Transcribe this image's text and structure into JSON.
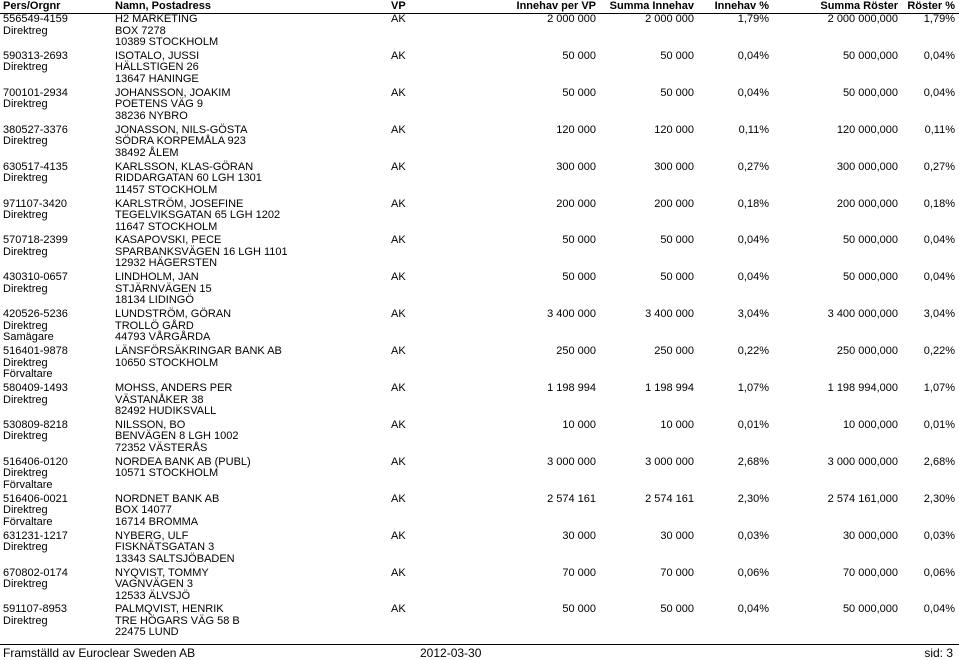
{
  "header": {
    "col_id": "Pers/Orgnr",
    "col_name": "Namn, Postadress",
    "col_vp": "VP",
    "col_innvp": "Innehav per VP",
    "col_suminn": "Summa Innehav",
    "col_innpct": "Innehav %",
    "col_sumrost": "Summa Röster",
    "col_rostpct": "Röster %"
  },
  "rows": [
    {
      "id": "556549-4159",
      "roles": [
        "Direktreg"
      ],
      "name": [
        "H2 MARKETING",
        "BOX 7278",
        "10389 STOCKHOLM"
      ],
      "vp": "AK",
      "innvp": "2 000 000",
      "suminn": "2 000 000",
      "innpct": "1,79%",
      "sumrost": "2 000 000,000",
      "rostpct": "1,79%"
    },
    {
      "id": "590313-2693",
      "roles": [
        "Direktreg"
      ],
      "name": [
        "ISOTALO, JUSSI",
        "HÄLLSTIGEN 26",
        "13647 HANINGE"
      ],
      "vp": "AK",
      "innvp": "50 000",
      "suminn": "50 000",
      "innpct": "0,04%",
      "sumrost": "50 000,000",
      "rostpct": "0,04%"
    },
    {
      "id": "700101-2934",
      "roles": [
        "Direktreg"
      ],
      "name": [
        "JOHANSSON, JOAKIM",
        "POETENS VÄG 9",
        "38236 NYBRO"
      ],
      "vp": "AK",
      "innvp": "50 000",
      "suminn": "50 000",
      "innpct": "0,04%",
      "sumrost": "50 000,000",
      "rostpct": "0,04%"
    },
    {
      "id": "380527-3376",
      "roles": [
        "Direktreg"
      ],
      "name": [
        "JONASSON, NILS-GÖSTA",
        "SÖDRA KORPEMÅLA 923",
        "38492 ÅLEM"
      ],
      "vp": "AK",
      "innvp": "120 000",
      "suminn": "120 000",
      "innpct": "0,11%",
      "sumrost": "120 000,000",
      "rostpct": "0,11%"
    },
    {
      "id": "630517-4135",
      "roles": [
        "Direktreg"
      ],
      "name": [
        "KARLSSON, KLAS-GÖRAN",
        "RIDDARGATAN 60 LGH 1301",
        "11457 STOCKHOLM"
      ],
      "vp": "AK",
      "innvp": "300 000",
      "suminn": "300 000",
      "innpct": "0,27%",
      "sumrost": "300 000,000",
      "rostpct": "0,27%"
    },
    {
      "id": "971107-3420",
      "roles": [
        "Direktreg"
      ],
      "name": [
        "KARLSTRÖM, JOSEFINE",
        "TEGELVIKSGATAN 65 LGH 1202",
        "11647 STOCKHOLM"
      ],
      "vp": "AK",
      "innvp": "200 000",
      "suminn": "200 000",
      "innpct": "0,18%",
      "sumrost": "200 000,000",
      "rostpct": "0,18%"
    },
    {
      "id": "570718-2399",
      "roles": [
        "Direktreg"
      ],
      "name": [
        "KASAPOVSKI, PECE",
        "SPARBANKSVÄGEN 16 LGH 1101",
        "12932 HÄGERSTEN"
      ],
      "vp": "AK",
      "innvp": "50 000",
      "suminn": "50 000",
      "innpct": "0,04%",
      "sumrost": "50 000,000",
      "rostpct": "0,04%"
    },
    {
      "id": "430310-0657",
      "roles": [
        "Direktreg"
      ],
      "name": [
        "LINDHOLM, JAN",
        "STJÄRNVÄGEN 15",
        "18134 LIDINGÖ"
      ],
      "vp": "AK",
      "innvp": "50 000",
      "suminn": "50 000",
      "innpct": "0,04%",
      "sumrost": "50 000,000",
      "rostpct": "0,04%"
    },
    {
      "id": "420526-5236",
      "roles": [
        "Direktreg",
        "Samägare"
      ],
      "name": [
        "LUNDSTRÖM, GÖRAN",
        "TROLLÖ GÅRD",
        "44793 VÅRGÅRDA"
      ],
      "vp": "AK",
      "innvp": "3 400 000",
      "suminn": "3 400 000",
      "innpct": "3,04%",
      "sumrost": "3 400 000,000",
      "rostpct": "3,04%"
    },
    {
      "id": "516401-9878",
      "roles": [
        "Direktreg",
        "Förvaltare"
      ],
      "name": [
        "LÄNSFÖRSÄKRINGAR BANK AB",
        "10650 STOCKHOLM"
      ],
      "vp": "AK",
      "innvp": "250 000",
      "suminn": "250 000",
      "innpct": "0,22%",
      "sumrost": "250 000,000",
      "rostpct": "0,22%"
    },
    {
      "id": "580409-1493",
      "roles": [
        "Direktreg"
      ],
      "name": [
        "MOHSS, ANDERS PER",
        "VÄSTANÅKER 38",
        "82492 HUDIKSVALL"
      ],
      "vp": "AK",
      "innvp": "1 198 994",
      "suminn": "1 198 994",
      "innpct": "1,07%",
      "sumrost": "1 198 994,000",
      "rostpct": "1,07%"
    },
    {
      "id": "530809-8218",
      "roles": [
        "Direktreg"
      ],
      "name": [
        "NILSSON, BO",
        "BENVÄGEN 8 LGH 1002",
        "72352 VÄSTERÅS"
      ],
      "vp": "AK",
      "innvp": "10 000",
      "suminn": "10 000",
      "innpct": "0,01%",
      "sumrost": "10 000,000",
      "rostpct": "0,01%"
    },
    {
      "id": "516406-0120",
      "roles": [
        "Direktreg",
        "Förvaltare"
      ],
      "name": [
        "NORDEA BANK AB (PUBL)",
        "10571 STOCKHOLM"
      ],
      "vp": "AK",
      "innvp": "3 000 000",
      "suminn": "3 000 000",
      "innpct": "2,68%",
      "sumrost": "3 000 000,000",
      "rostpct": "2,68%"
    },
    {
      "id": "516406-0021",
      "roles": [
        "Direktreg",
        "Förvaltare"
      ],
      "name": [
        "NORDNET BANK AB",
        "BOX 14077",
        "16714 BROMMA"
      ],
      "vp": "AK",
      "innvp": "2 574 161",
      "suminn": "2 574 161",
      "innpct": "2,30%",
      "sumrost": "2 574 161,000",
      "rostpct": "2,30%"
    },
    {
      "id": "631231-1217",
      "roles": [
        "Direktreg"
      ],
      "name": [
        "NYBERG, ULF",
        "FISKNÄTSGATAN 3",
        "13343 SALTSJÖBADEN"
      ],
      "vp": "AK",
      "innvp": "30 000",
      "suminn": "30 000",
      "innpct": "0,03%",
      "sumrost": "30 000,000",
      "rostpct": "0,03%"
    },
    {
      "id": "670802-0174",
      "roles": [
        "Direktreg"
      ],
      "name": [
        "NYQVIST, TOMMY",
        "VAGNVÄGEN 3",
        "12533 ÄLVSJÖ"
      ],
      "vp": "AK",
      "innvp": "70 000",
      "suminn": "70 000",
      "innpct": "0,06%",
      "sumrost": "70 000,000",
      "rostpct": "0,06%"
    },
    {
      "id": "591107-8953",
      "roles": [
        "Direktreg"
      ],
      "name": [
        "PALMQVIST, HENRIK",
        "TRE HÖGARS VÄG 58 B",
        "22475 LUND"
      ],
      "vp": "AK",
      "innvp": "50 000",
      "suminn": "50 000",
      "innpct": "0,04%",
      "sumrost": "50 000,000",
      "rostpct": "0,04%"
    }
  ],
  "footer": {
    "issuer": "Framställd av Euroclear Sweden AB",
    "date": "2012-03-30",
    "page": "sid: 3"
  }
}
